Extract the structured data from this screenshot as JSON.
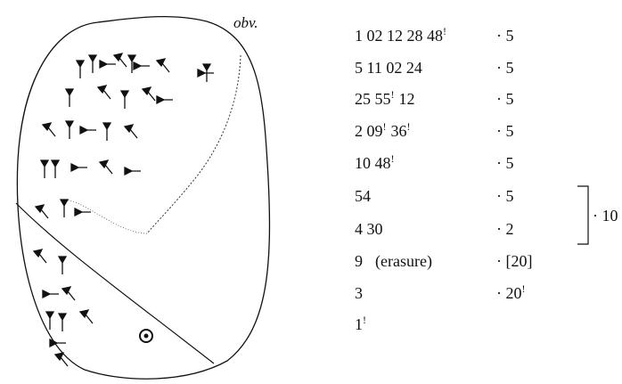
{
  "figure": {
    "side_label": "obv.",
    "rows": [
      {
        "left": [
          {
            "text": "1 02 12 28 48",
            "sup": "!"
          }
        ],
        "right": {
          "text": "· 5"
        }
      },
      {
        "left": [
          {
            "text": "5 11 02 24"
          }
        ],
        "right": {
          "text": "· 5"
        }
      },
      {
        "left": [
          {
            "text": "25 55",
            "sup": "!"
          },
          {
            "text": "12"
          }
        ],
        "right": {
          "text": "· 5"
        }
      },
      {
        "left": [
          {
            "text": "2 09",
            "sup": "!"
          },
          {
            "text": "36",
            "sup": "!"
          }
        ],
        "right": {
          "text": "· 5"
        }
      },
      {
        "left": [
          {
            "text": "10 48",
            "sup": "!"
          }
        ],
        "right": {
          "text": "· 5"
        }
      },
      {
        "left": [
          {
            "text": "54"
          }
        ],
        "right": {
          "text": "· 5"
        }
      },
      {
        "left": [
          {
            "text": "4 30"
          }
        ],
        "right": {
          "text": "· 2"
        }
      },
      {
        "left": [
          {
            "text": "9"
          },
          {
            "text": "(erasure)"
          }
        ],
        "right": {
          "text": "· [20]"
        }
      },
      {
        "left": [
          {
            "text": "3"
          }
        ],
        "right": {
          "text": "· 20",
          "sup": "!"
        }
      },
      {
        "left": [
          {
            "text": "1",
            "sup": "!"
          }
        ]
      }
    ],
    "bracket_label": "· 10"
  }
}
